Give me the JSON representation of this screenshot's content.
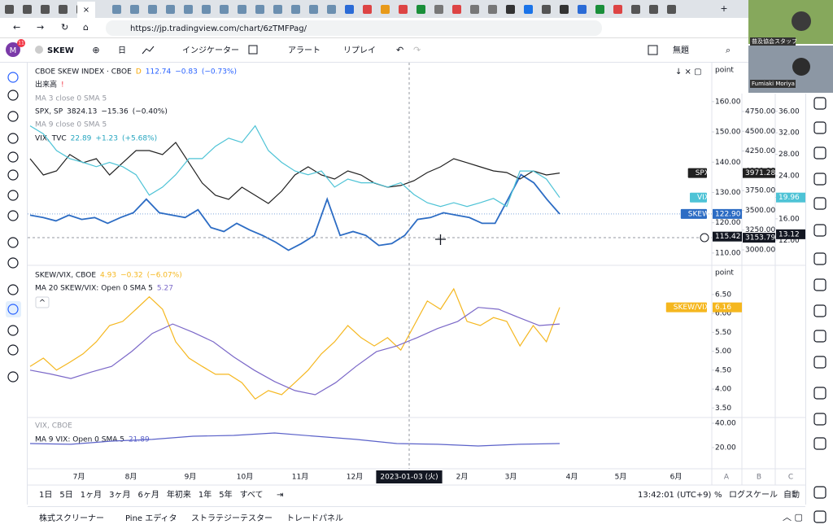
{
  "browser": {
    "url": "https://jp.tradingview.com/chart/6zTMFPag/"
  },
  "webcam": {
    "label": "普及協会スタッフ",
    "name": "Fumiaki Moriya"
  },
  "toolbar": {
    "avatar": "M",
    "badge": "11",
    "symbol": "SKEW",
    "interval": "日",
    "indicators": "インジケーター",
    "alert": "アラート",
    "replay": "リプレイ",
    "layout_name": "無題"
  },
  "chart": {
    "panes": [
      {
        "legend": [
          [
            {
              "text": "CBOE SKEW INDEX · CBOE",
              "color": "#131722"
            },
            {
              "text": "D",
              "color": "#f7a600"
            },
            {
              "text": "112.74",
              "color": "#2962ff"
            },
            {
              "text": "−0.83",
              "color": "#2962ff"
            },
            {
              "text": "(−0.73%)",
              "color": "#2962ff"
            }
          ],
          [
            {
              "text": "出来高",
              "color": "#131722"
            },
            {
              "text": "!",
              "color": "#f23645"
            }
          ],
          [
            {
              "text": "MA 3 close 0 SMA 5",
              "color": "#9598a1"
            }
          ],
          [
            {
              "text": "SPX, SP",
              "color": "#131722"
            },
            {
              "text": "3824.13",
              "color": "#131722"
            },
            {
              "text": "−15.36",
              "color": "#131722"
            },
            {
              "text": "(−0.40%)",
              "color": "#131722"
            }
          ],
          [
            {
              "text": "MA 9 close 0 SMA 5",
              "color": "#9598a1"
            }
          ],
          [
            {
              "text": "VIX, TVC",
              "color": "#131722"
            },
            {
              "text": "22.89",
              "color": "#26a6c0"
            },
            {
              "text": "+1.23",
              "color": "#26a6c0"
            },
            {
              "text": "(+5.68%)",
              "color": "#26a6c0"
            }
          ]
        ],
        "scales": [
          {
            "head": "point",
            "ylim": [
              106.2,
              172.6
            ],
            "ticks": [
              {
                "value": 160,
                "label": "160.00"
              },
              {
                "value": 150,
                "label": "150.00"
              },
              {
                "value": 140,
                "label": "140.00"
              },
              {
                "value": 130,
                "label": "130.00"
              },
              {
                "value": 120,
                "label": "120.00"
              },
              {
                "value": 110,
                "label": "110.00"
              }
            ],
            "crosshair": {
              "value": 115.42,
              "label": "115.42"
            },
            "series": [
              {
                "color": "#2c6cc4",
                "tag": {
                  "name": "SKEW",
                  "value": 122.9,
                  "label": "122.90"
                },
                "values": [
                  122.5,
                  121.7,
                  120.6,
                  122.5,
                  121.1,
                  121.7,
                  119.8,
                  121.7,
                  123.3,
                  127.8,
                  123.3,
                  122.5,
                  121.7,
                  124.3,
                  118.4,
                  117.1,
                  119.8,
                  117.6,
                  115.8,
                  113.6,
                  110.9,
                  113.1,
                  115.8,
                  127.8,
                  115.8,
                  117.1,
                  115.8,
                  112.5,
                  113.1,
                  115.8,
                  121.1,
                  121.7,
                  123.3,
                  122.5,
                  121.7,
                  119.8,
                  119.8,
                  127.8,
                  135.9,
                  133.2,
                  127.8,
                  122.9
                ]
              }
            ]
          },
          {
            "ylim": [
              2815,
              5357
            ],
            "ticks": [
              {
                "value": 4750,
                "label": "4750.00"
              },
              {
                "value": 4500,
                "label": "4500.00"
              },
              {
                "value": 4250,
                "label": "4250.00"
              },
              {
                "value": 4000,
                "label": "4000.00"
              },
              {
                "value": 3750,
                "label": "3750.00"
              },
              {
                "value": 3500,
                "label": "3500.00"
              },
              {
                "value": 3250,
                "label": "3250.00"
              },
              {
                "value": 3000,
                "label": "3000.00"
              }
            ],
            "crosshair": {
              "value": 3153.79,
              "label": "3153.79"
            },
            "series": [
              {
                "color": "#202020",
                "tag": {
                  "name": "SPX",
                  "value": 3971.28,
                  "label": "3971.28"
                },
                "values": [
                  4153,
                  3947,
                  3999,
                  4205,
                  4102,
                  4153,
                  3947,
                  4102,
                  4256,
                  4256,
                  4205,
                  4359,
                  4102,
                  3845,
                  3690,
                  3639,
                  3793,
                  3690,
                  3587,
                  3742,
                  3947,
                  4050,
                  3947,
                  3896,
                  3999,
                  3947,
                  3845,
                  3793,
                  3814,
                  3875,
                  3978,
                  4050,
                  4153,
                  4102,
                  4050,
                  3999,
                  3978,
                  3896,
                  3999,
                  3947,
                  3971.28
                ]
              }
            ]
          },
          {
            "ylim": [
              7.5,
              44.9
            ],
            "ticks": [
              {
                "value": 36,
                "label": "36.00"
              },
              {
                "value": 32,
                "label": "32.00"
              },
              {
                "value": 28,
                "label": "28.00"
              },
              {
                "value": 24,
                "label": "24.00"
              },
              {
                "value": 20,
                "label": "20.00"
              },
              {
                "value": 16,
                "label": "16.00"
              },
              {
                "value": 12,
                "label": "12.00"
              }
            ],
            "crosshair": {
              "value": 13.12,
              "label": "13.12"
            },
            "series": [
              {
                "color": "#4ec3d6",
                "tag": {
                  "name": "VIX",
                  "value": 19.96,
                  "label": "19.96"
                },
                "values": [
                  33.3,
                  31.8,
                  28.7,
                  27.2,
                  26.5,
                  25.7,
                  26.5,
                  25.7,
                  24.2,
                  20.4,
                  21.9,
                  24.2,
                  27.2,
                  27.2,
                  29.5,
                  31.0,
                  30.2,
                  33.3,
                  28.7,
                  26.5,
                  24.9,
                  24.2,
                  24.9,
                  21.9,
                  23.4,
                  22.7,
                  22.7,
                  21.9,
                  22.7,
                  20.5,
                  19.0,
                  18.3,
                  19.0,
                  18.3,
                  19.0,
                  19.8,
                  18.3,
                  24.9,
                  24.9,
                  23.4,
                  19.96
                ]
              }
            ]
          }
        ]
      },
      {
        "legend": [
          [
            {
              "text": "SKEW/VIX, CBOE",
              "color": "#131722"
            },
            {
              "text": "4.93",
              "color": "#f5b71f"
            },
            {
              "text": "−0.32",
              "color": "#f5b71f"
            },
            {
              "text": "(−6.07%)",
              "color": "#f5b71f"
            }
          ],
          [
            {
              "text": "MA 20 SKEW/VIX: Open 0 SMA 5",
              "color": "#131722"
            },
            {
              "text": "5.27",
              "color": "#7b68c8"
            }
          ]
        ],
        "scales": [
          {
            "head": "point",
            "ylim": [
              3.27,
              7.25
            ],
            "ticks": [
              {
                "value": 6.5,
                "label": "6.50"
              },
              {
                "value": 6,
                "label": "6.00"
              },
              {
                "value": 5.5,
                "label": "5.50"
              },
              {
                "value": 5,
                "label": "5.00"
              },
              {
                "value": 4.5,
                "label": "4.50"
              },
              {
                "value": 4,
                "label": "4.00"
              },
              {
                "value": 3.5,
                "label": "3.50"
              }
            ],
            "series": [
              {
                "color": "#f5b71f",
                "tag": {
                  "name": "SKEW/VIX",
                  "value": 6.16,
                  "label": "6.16"
                },
                "values": [
                  4.6,
                  4.82,
                  4.5,
                  4.71,
                  4.93,
                  5.25,
                  5.68,
                  5.79,
                  6.11,
                  6.44,
                  6.11,
                  5.25,
                  4.82,
                  4.6,
                  4.39,
                  4.39,
                  4.17,
                  3.74,
                  3.96,
                  3.85,
                  4.17,
                  4.5,
                  4.93,
                  5.25,
                  5.68,
                  5.36,
                  5.14,
                  5.36,
                  5.03,
                  5.68,
                  6.33,
                  6.11,
                  6.65,
                  5.79,
                  5.68,
                  5.89,
                  5.79,
                  5.14,
                  5.68,
                  5.25,
                  6.16
                ]
              },
              {
                "color": "#7b68c8",
                "values": [
                  4.5,
                  4.4,
                  4.28,
                  4.45,
                  4.6,
                  5.0,
                  5.47,
                  5.72,
                  5.5,
                  5.25,
                  4.85,
                  4.5,
                  4.2,
                  3.96,
                  3.85,
                  4.17,
                  4.6,
                  4.99,
                  5.14,
                  5.36,
                  5.6,
                  5.79,
                  6.16,
                  6.11,
                  5.89,
                  5.68,
                  5.72
                ]
              }
            ]
          }
        ]
      },
      {
        "legend": [
          [
            {
              "text": "VIX, CBOE",
              "color": "#9598a1"
            }
          ],
          [
            {
              "text": "MA 9 VIX: Open 0 SMA 5",
              "color": "#131722"
            },
            {
              "text": "21.89",
              "color": "#5b62c9"
            }
          ]
        ],
        "scales": [
          {
            "ylim": [
              3.3,
              44
            ],
            "ticks": [
              {
                "value": 40,
                "label": "40.00"
              },
              {
                "value": 20,
                "label": "20.00"
              }
            ],
            "series": [
              {
                "color": "#5b62c9",
                "values": [
                  23.3,
                  22.7,
                  25.3,
                  26.7,
                  29.3,
                  30,
                  32,
                  29.3,
                  26.7,
                  23.3,
                  22.7,
                  21.3,
                  22.7,
                  23.3
                ]
              }
            ]
          }
        ]
      }
    ],
    "time_axis": {
      "months": [
        "7月",
        "8月",
        "9月",
        "10月",
        "11月",
        "12月",
        "2月",
        "3月",
        "4月",
        "5月",
        "6月"
      ],
      "crosshair": "2023-01-03 (火)",
      "scale_letters": [
        "A",
        "B",
        "C"
      ]
    }
  },
  "bottom_bar": {
    "ranges": [
      "1日",
      "5日",
      "1ヶ月",
      "3ヶ月",
      "6ヶ月",
      "年初来",
      "1年",
      "5年",
      "すべて"
    ],
    "clock": "13:42:01 (UTC+9)",
    "percent": "%",
    "log": "ログスケール",
    "auto": "自動"
  },
  "panels": [
    "株式スクリーナー",
    "Pine エディタ",
    "ストラテジーテスター",
    "トレードパネル"
  ]
}
